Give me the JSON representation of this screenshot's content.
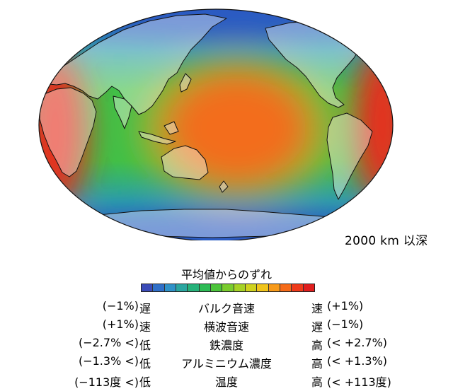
{
  "depth_label": "2000 km 以深",
  "legend": {
    "title": "平均値からのずれ",
    "colors": [
      "#3b4bb8",
      "#2f6fc8",
      "#2f92c8",
      "#2aa6a0",
      "#26b27a",
      "#2dbb55",
      "#4cc43b",
      "#7acc2e",
      "#a6d226",
      "#cfd21f",
      "#f0c41c",
      "#f79a1a",
      "#f56b19",
      "#ef3a1a",
      "#e01e1e"
    ],
    "rows": [
      {
        "lval": "(−1%)",
        "lword": "遅",
        "prop": "バルク音速",
        "rword": "速",
        "rval": "(+1%)"
      },
      {
        "lval": "(+1%)",
        "lword": "速",
        "prop": "横波音速",
        "rword": "遅",
        "rval": "(−1%)"
      },
      {
        "lval": "(−2.7% <)",
        "lword": "低",
        "prop": "鉄濃度",
        "rword": "高",
        "rval": "(< +2.7%)"
      },
      {
        "lval": "(−1.3% <)",
        "lword": "低",
        "prop": "アルミニウム濃度",
        "rword": "高",
        "rval": "(< +1.3%)"
      },
      {
        "lval": "(−113度 <)",
        "lword": "低",
        "prop": "温度",
        "rword": "高",
        "rval": "(< +113度)"
      }
    ]
  }
}
